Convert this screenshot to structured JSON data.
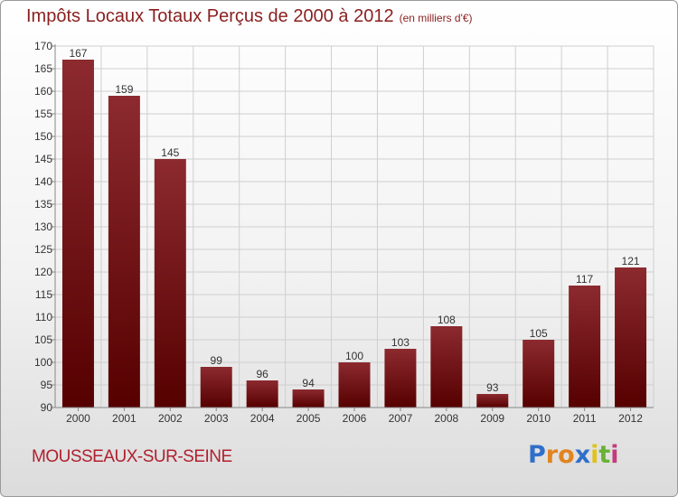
{
  "title": "Impôts Locaux Totaux Perçus de 2000 à 2012",
  "unit_note": "(en milliers d'€)",
  "place": "MOUSSEAUX-SUR-SEINE",
  "logo": {
    "letters": [
      "P",
      "r",
      "o",
      "x",
      "i",
      "t",
      "i"
    ],
    "colors": [
      "#2f6fc9",
      "#e2841f",
      "#e2841f",
      "#2f6fc9",
      "#e0c21d",
      "#68b234",
      "#c43c7a"
    ]
  },
  "chart_data": {
    "type": "bar",
    "title": "Impôts Locaux Totaux Perçus de 2000 à 2012",
    "xlabel": "",
    "ylabel": "",
    "categories": [
      "2000",
      "2001",
      "2002",
      "2003",
      "2004",
      "2005",
      "2006",
      "2007",
      "2008",
      "2009",
      "2010",
      "2011",
      "2012"
    ],
    "values": [
      167,
      159,
      145,
      99,
      96,
      94,
      100,
      103,
      108,
      93,
      105,
      117,
      121
    ],
    "ylim": [
      90,
      170
    ],
    "yticks": [
      90,
      95,
      100,
      105,
      110,
      115,
      120,
      125,
      130,
      135,
      140,
      145,
      150,
      155,
      160,
      165,
      170
    ],
    "grid": true,
    "bar_color": "#7a1414",
    "grid_color": "#cfcfcf"
  }
}
